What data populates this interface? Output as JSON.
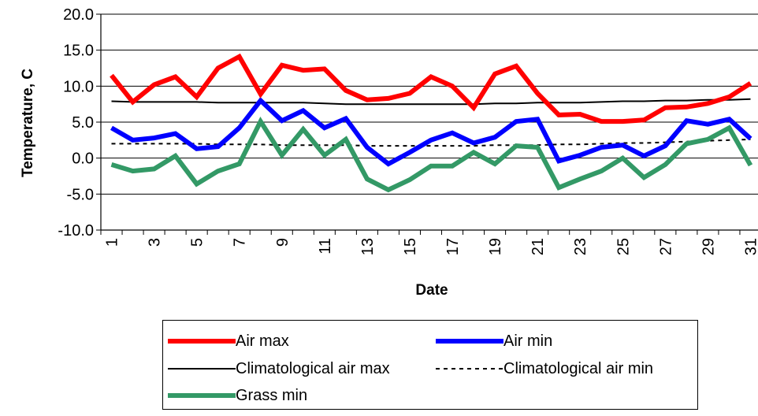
{
  "chart_data": {
    "type": "line",
    "xlabel": "Date",
    "ylabel": "Temperature, C",
    "ylim": [
      -10,
      20
    ],
    "y_ticks": [
      "-10.0",
      "-5.0",
      "0.0",
      "5.0",
      "10.0",
      "15.0",
      "20.0"
    ],
    "x_tick_labels": [
      "1",
      "3",
      "5",
      "7",
      "9",
      "11",
      "13",
      "15",
      "17",
      "19",
      "21",
      "23",
      "25",
      "27",
      "29",
      "31"
    ],
    "x": [
      1,
      2,
      3,
      4,
      5,
      6,
      7,
      8,
      9,
      10,
      11,
      12,
      13,
      14,
      15,
      16,
      17,
      18,
      19,
      20,
      21,
      22,
      23,
      24,
      25,
      26,
      27,
      28,
      29,
      30,
      31
    ],
    "grid": "horizontal",
    "legend_position": "bottom",
    "series": [
      {
        "name": "Air max",
        "color": "#ff0000",
        "style": "thick",
        "values": [
          11.5,
          7.8,
          10.2,
          11.3,
          8.5,
          12.5,
          14.1,
          8.9,
          12.9,
          12.2,
          12.4,
          9.4,
          8.1,
          8.3,
          9.0,
          11.3,
          10.0,
          7.0,
          11.7,
          12.8,
          9.0,
          6.0,
          6.1,
          5.1,
          5.1,
          5.3,
          7.0,
          7.1,
          7.6,
          8.5,
          10.4
        ]
      },
      {
        "name": "Air min",
        "color": "#0000ff",
        "style": "thick",
        "values": [
          4.2,
          2.5,
          2.8,
          3.4,
          1.3,
          1.6,
          4.2,
          8.0,
          5.2,
          6.6,
          4.2,
          5.5,
          1.5,
          -0.8,
          0.8,
          2.5,
          3.5,
          2.1,
          2.9,
          5.1,
          5.4,
          -0.4,
          0.4,
          1.5,
          1.8,
          0.3,
          1.7,
          5.2,
          4.7,
          5.4,
          2.7
        ]
      },
      {
        "name": "Climatological air max",
        "color": "#000000",
        "style": "thin",
        "values": [
          7.9,
          7.8,
          7.8,
          7.8,
          7.8,
          7.7,
          7.7,
          7.7,
          7.7,
          7.7,
          7.6,
          7.5,
          7.5,
          7.5,
          7.5,
          7.5,
          7.5,
          7.5,
          7.6,
          7.6,
          7.7,
          7.7,
          7.7,
          7.8,
          7.9,
          7.9,
          8.0,
          8.0,
          8.1,
          8.1,
          8.2
        ]
      },
      {
        "name": "Climatological air min",
        "color": "#000000",
        "style": "dashed",
        "values": [
          2.0,
          2.0,
          2.0,
          2.0,
          2.0,
          1.9,
          1.9,
          1.9,
          1.8,
          1.8,
          1.8,
          1.8,
          1.7,
          1.7,
          1.7,
          1.7,
          1.7,
          1.7,
          1.8,
          1.8,
          1.8,
          1.9,
          1.9,
          2.0,
          2.1,
          2.1,
          2.2,
          2.3,
          2.4,
          2.5,
          2.6
        ]
      },
      {
        "name": "Grass min",
        "color": "#339966",
        "style": "thick",
        "values": [
          -0.9,
          -1.8,
          -1.5,
          0.3,
          -3.6,
          -1.8,
          -0.8,
          5.1,
          0.4,
          4.0,
          0.4,
          2.6,
          -2.9,
          -4.4,
          -3.0,
          -1.1,
          -1.1,
          0.8,
          -0.8,
          1.7,
          1.5,
          -4.1,
          -2.9,
          -1.8,
          0.0,
          -2.7,
          -0.9,
          2.0,
          2.6,
          4.2,
          -1.0
        ]
      }
    ]
  }
}
